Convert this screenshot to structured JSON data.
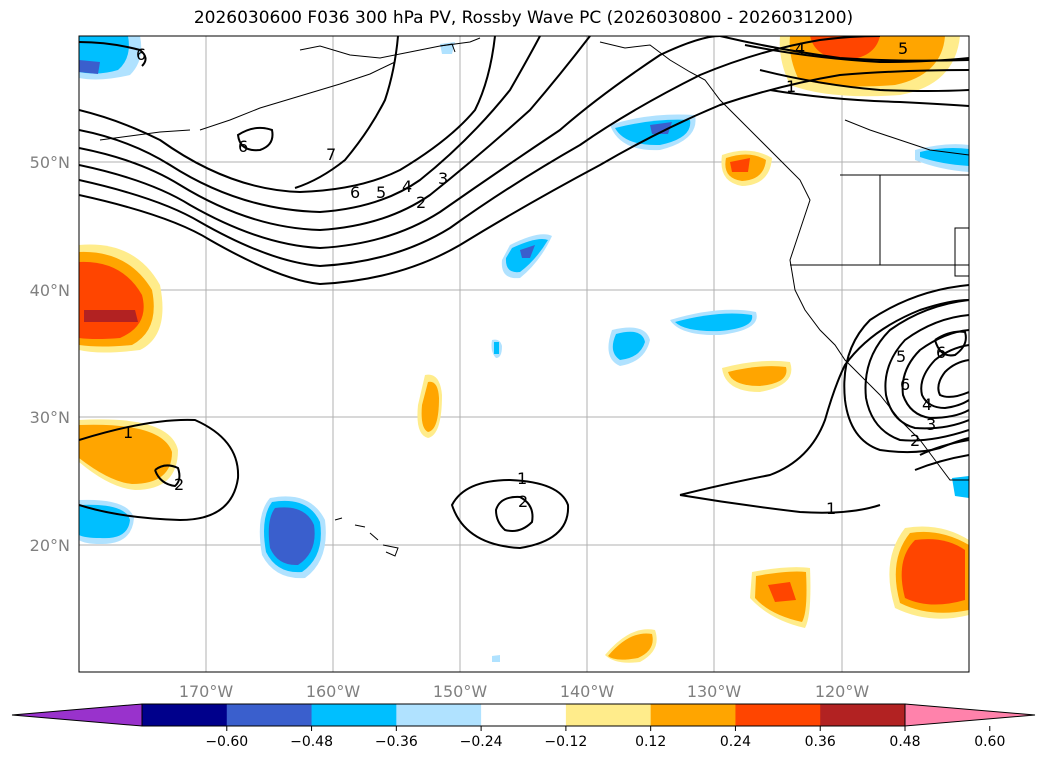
{
  "title": "2026030600 F036 300 hPa PV, Rossby Wave PC (2026030800 - 2026031200)",
  "longitude_labels": [
    "170°W",
    "160°W",
    "150°W",
    "140°W",
    "130°W",
    "120°W"
  ],
  "latitude_labels": [
    "50°N",
    "40°N",
    "30°N",
    "20°N"
  ],
  "colorbar": {
    "tick_labels": [
      "−0.60",
      "−0.48",
      "−0.36",
      "−0.24",
      "−0.12",
      "0.12",
      "0.24",
      "0.36",
      "0.48",
      "0.60"
    ],
    "colors": [
      "#9932cc",
      "#00008b",
      "#3a5fcd",
      "#00bfff",
      "#b0e2ff",
      "#ffffff",
      "#ffec8b",
      "#ffa500",
      "#ff4500",
      "#b22222",
      "#ff82ab"
    ]
  },
  "contour_labels": [
    {
      "id": "c-6-nw",
      "text": "6"
    },
    {
      "id": "c-6-alaska",
      "text": "6"
    },
    {
      "id": "c-7",
      "text": "7"
    },
    {
      "id": "c-6",
      "text": "6"
    },
    {
      "id": "c-5",
      "text": "5"
    },
    {
      "id": "c-4",
      "text": "4"
    },
    {
      "id": "c-3",
      "text": "3"
    },
    {
      "id": "c-2",
      "text": "2"
    },
    {
      "id": "c-4-ne",
      "text": "4"
    },
    {
      "id": "c-5-ne",
      "text": "5"
    },
    {
      "id": "c-1-ne",
      "text": "1"
    },
    {
      "id": "c-1-w",
      "text": "1"
    },
    {
      "id": "c-2-w",
      "text": "2"
    },
    {
      "id": "c-1-c",
      "text": "1"
    },
    {
      "id": "c-2-c",
      "text": "2"
    },
    {
      "id": "c-1-e",
      "text": "1"
    },
    {
      "id": "c-5-se",
      "text": "5"
    },
    {
      "id": "c-6-se",
      "text": "6"
    },
    {
      "id": "c-6-se2",
      "text": "6"
    },
    {
      "id": "c-4-se",
      "text": "4"
    },
    {
      "id": "c-3-se",
      "text": "3"
    },
    {
      "id": "c-2-se",
      "text": "2"
    }
  ]
}
